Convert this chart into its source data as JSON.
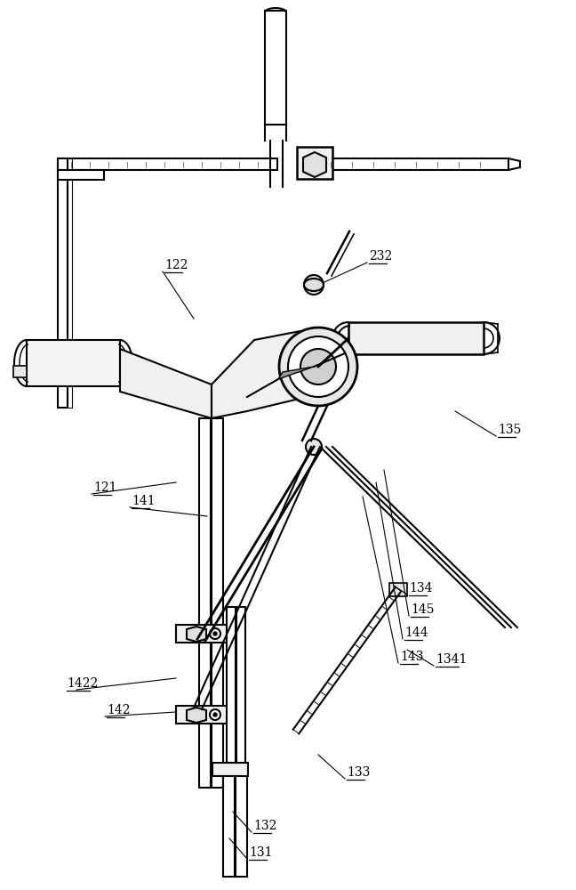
{
  "title": "",
  "background_color": "#ffffff",
  "line_color": "#000000",
  "line_width": 1.2,
  "labels": [
    [
      "121",
      105,
      555
    ],
    [
      "122",
      185,
      305
    ],
    [
      "131",
      280,
      965
    ],
    [
      "132",
      285,
      935
    ],
    [
      "133",
      390,
      875
    ],
    [
      "134",
      460,
      668
    ],
    [
      "1341",
      490,
      748
    ],
    [
      "135",
      560,
      490
    ],
    [
      "141",
      148,
      570
    ],
    [
      "142",
      120,
      805
    ],
    [
      "1422",
      75,
      775
    ],
    [
      "143",
      450,
      745
    ],
    [
      "144",
      455,
      718
    ],
    [
      "145",
      462,
      692
    ],
    [
      "232",
      415,
      295
    ]
  ],
  "figsize": [
    6.48,
    10.0
  ],
  "dpi": 100
}
